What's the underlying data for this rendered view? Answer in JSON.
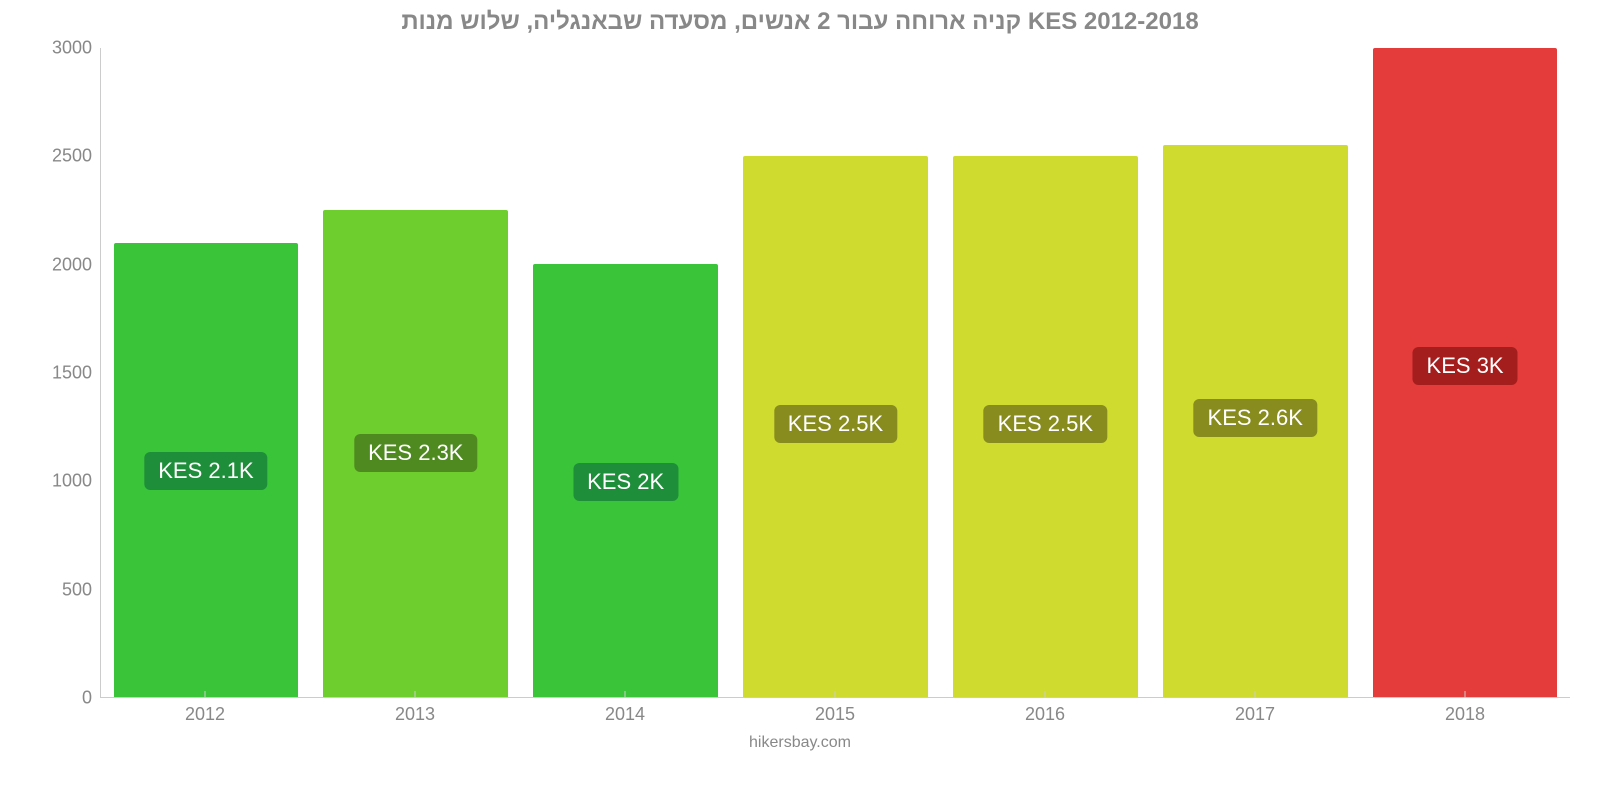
{
  "chart": {
    "type": "bar",
    "title": "קניה ארוחה עבור 2 אנשים, מסעדה שבאנגליה, שלוש מנות KES 2012-2018",
    "title_color": "#888888",
    "title_fontsize": 24,
    "background_color": "#ffffff",
    "axis_color": "#cccccc",
    "tick_color": "#888888",
    "tick_fontsize": 18,
    "ylim": [
      0,
      3000
    ],
    "ytick_step": 500,
    "yticks": [
      0,
      500,
      1000,
      1500,
      2000,
      2500,
      3000
    ],
    "categories": [
      "2012",
      "2013",
      "2014",
      "2015",
      "2016",
      "2017",
      "2018"
    ],
    "values": [
      2100,
      2250,
      2000,
      2500,
      2500,
      2550,
      3000
    ],
    "bar_colors": [
      "#3ac43a",
      "#6ece2e",
      "#3ac43a",
      "#cfdb2e",
      "#cfdb2e",
      "#cfdb2e",
      "#e43b3b"
    ],
    "bar_label_bg": [
      "#1f8e3b",
      "#4f8a20",
      "#1f8e3b",
      "#888c1f",
      "#888c1f",
      "#888c1f",
      "#a51e1e"
    ],
    "bar_labels": [
      "KES 2.1K",
      "KES 2.3K",
      "KES 2K",
      "KES 2.5K",
      "KES 2.5K",
      "KES 2.6K",
      "KES 3K"
    ],
    "bar_width": 0.88,
    "label_fontsize": 22,
    "footer": "hikersbay.com",
    "footer_color": "#888888"
  }
}
